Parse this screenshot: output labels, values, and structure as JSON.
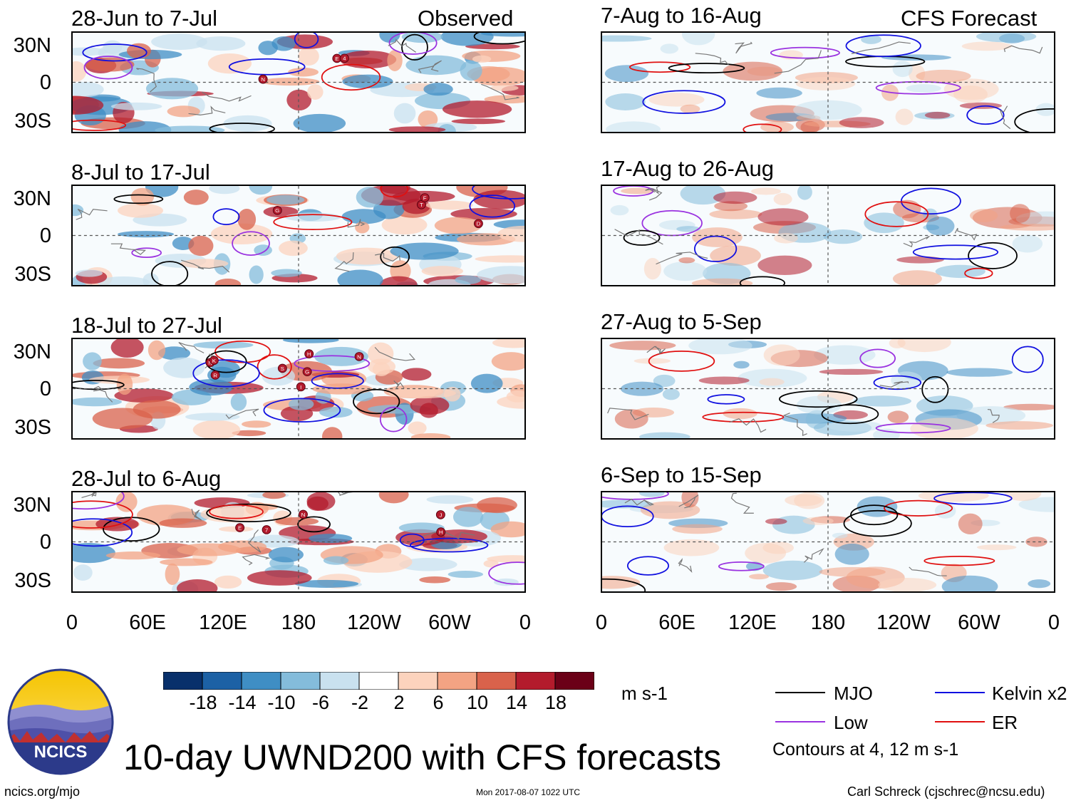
{
  "chart_data": {
    "type": "heatmap",
    "title": "10-day UWND200 with CFS forecasts",
    "variable": "UWND200 (200 hPa zonal wind anomaly)",
    "units": "m s-1",
    "xlabel": "",
    "ylabel": "",
    "x_ticks": [
      "0",
      "60E",
      "120E",
      "180",
      "120W",
      "60W",
      "0"
    ],
    "y_ticks": [
      "30N",
      "0",
      "30S"
    ],
    "colorbar_ticks": [
      "-18",
      "-14",
      "-10",
      "-6",
      "-2",
      "2",
      "6",
      "10",
      "14",
      "18"
    ],
    "colorbar_colors": [
      "#08306b",
      "#1c61a5",
      "#3f8ec4",
      "#84bcdb",
      "#c9e1ef",
      "#ffffff",
      "#fcd3bd",
      "#f3a383",
      "#d9624b",
      "#b31b2c",
      "#6b0017"
    ],
    "contour_legend": [
      {
        "name": "MJO",
        "color": "#000000"
      },
      {
        "name": "Kelvin x2",
        "color": "#1010e0"
      },
      {
        "name": "Low",
        "color": "#9a32e0"
      },
      {
        "name": "ER",
        "color": "#e01010"
      }
    ],
    "contour_note": "Contours at 4, 12 m s-1",
    "column_labels": {
      "observed": "Observed",
      "forecast": "CFS Forecast"
    },
    "panels": [
      {
        "period": "28-Jun to 7-Jul",
        "source": "Observed",
        "storms": [
          "N",
          "E",
          "4"
        ]
      },
      {
        "period": "8-Jul to 17-Jul",
        "source": "Observed",
        "storms": [
          "T",
          "F",
          "G",
          "D"
        ]
      },
      {
        "period": "18-Jul to 27-Jul",
        "source": "Observed",
        "storms": [
          "S",
          "R",
          "N",
          "N",
          "K",
          "G",
          "I",
          "H"
        ]
      },
      {
        "period": "28-Jul to 6-Aug",
        "source": "Observed",
        "storms": [
          "H",
          "N",
          "J",
          "E",
          "7"
        ]
      },
      {
        "period": "7-Aug to 16-Aug",
        "source": "CFS Forecast",
        "storms": []
      },
      {
        "period": "17-Aug to 26-Aug",
        "source": "CFS Forecast",
        "storms": []
      },
      {
        "period": "27-Aug to 5-Sep",
        "source": "CFS Forecast",
        "storms": []
      },
      {
        "period": "6-Sep to 15-Sep",
        "source": "CFS Forecast",
        "storms": []
      }
    ]
  },
  "logo": {
    "text": "NCICS"
  },
  "footer": {
    "url": "ncics.org/mjo",
    "timestamp": "Mon 2017-08-07 1022 UTC",
    "author": "Carl Schreck (cjschrec@ncsu.edu)"
  }
}
